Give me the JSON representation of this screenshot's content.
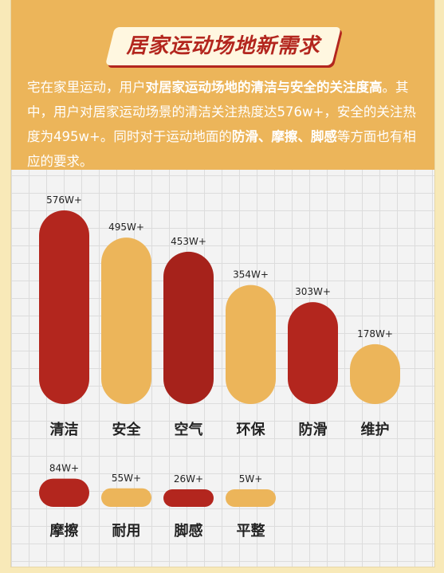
{
  "header": {
    "title": "居家运动场地新需求",
    "paragraph": [
      {
        "text": "宅在家里运动，用户",
        "bold": false
      },
      {
        "text": "对居家运动场地的清洁与安全的关注度高",
        "bold": true
      },
      {
        "text": "。其中，用户对居家运动场景的清洁关注热度达576w+，安全的关注热度为495w+。同时对于运动地面的",
        "bold": false
      },
      {
        "text": "防滑、摩擦、脚感",
        "bold": true
      },
      {
        "text": "等方面也有相应的要求。",
        "bold": false
      }
    ]
  },
  "colors": {
    "red": "#b3261e",
    "gold": "#ecb55a",
    "background": "#f3f3f3"
  },
  "chart_data": {
    "type": "bar",
    "title": "",
    "categories": [
      "清洁",
      "安全",
      "空气",
      "环保",
      "防滑",
      "维护",
      "摩擦",
      "耐用",
      "脚感",
      "平整"
    ],
    "values": [
      576,
      495,
      453,
      354,
      303,
      178,
      84,
      55,
      26,
      5
    ],
    "value_labels": [
      "576W+",
      "495W+",
      "453W+",
      "354W+",
      "303W+",
      "178W+",
      "84W+",
      "55W+",
      "26W+",
      "5W+"
    ],
    "unit": "W+",
    "colors": [
      "#b3261e",
      "#ecb55a",
      "#a6221b",
      "#ecb55a",
      "#b3261e",
      "#ecb55a",
      "#b3261e",
      "#ecb55a",
      "#b3261e",
      "#ecb55a"
    ],
    "rows": [
      {
        "indices": [
          0,
          1,
          2,
          3,
          4,
          5
        ]
      },
      {
        "indices": [
          6,
          7,
          8,
          9
        ]
      }
    ],
    "grid": true,
    "legend": "none"
  }
}
